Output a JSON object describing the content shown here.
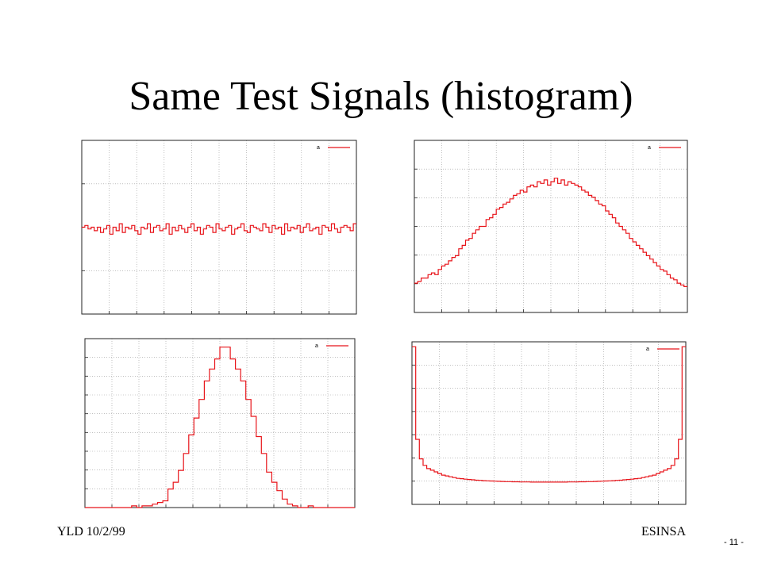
{
  "slide": {
    "title": "Same Test Signals (histogram)",
    "footer_left": "YLD 10/2/99",
    "footer_right": "ESINSA",
    "page_number": "- 11 -"
  },
  "colors": {
    "series": "#e8141a",
    "grid": "#9a9a9a",
    "frame": "#222222"
  },
  "chart_data": [
    {
      "type": "line",
      "step": true,
      "ylim": [
        0,
        1
      ],
      "series": [
        {
          "legend_label": "a",
          "values": [
            0.5,
            0.51,
            0.49,
            0.5,
            0.48,
            0.5,
            0.47,
            0.49,
            0.51,
            0.46,
            0.5,
            0.48,
            0.52,
            0.47,
            0.5,
            0.49,
            0.51,
            0.48,
            0.46,
            0.5,
            0.49,
            0.52,
            0.47,
            0.5,
            0.51,
            0.48,
            0.49,
            0.52,
            0.46,
            0.5,
            0.48,
            0.51,
            0.49,
            0.47,
            0.5,
            0.52,
            0.48,
            0.5,
            0.46,
            0.49,
            0.51,
            0.5,
            0.47,
            0.52,
            0.49,
            0.48,
            0.5,
            0.51,
            0.46,
            0.49,
            0.5,
            0.52,
            0.48,
            0.47,
            0.51,
            0.5,
            0.49,
            0.48,
            0.52,
            0.5,
            0.47,
            0.51,
            0.49,
            0.5,
            0.46,
            0.52,
            0.48,
            0.5,
            0.49,
            0.51,
            0.47,
            0.5,
            0.52,
            0.48,
            0.49,
            0.5,
            0.46,
            0.51,
            0.5,
            0.48,
            0.52,
            0.49,
            0.47,
            0.5,
            0.51,
            0.5,
            0.48,
            0.52
          ]
        }
      ]
    },
    {
      "type": "line",
      "step": true,
      "ylim": [
        0,
        1
      ],
      "series": [
        {
          "legend_label": "a",
          "values": [
            0.17,
            0.18,
            0.2,
            0.2,
            0.22,
            0.23,
            0.22,
            0.25,
            0.27,
            0.28,
            0.3,
            0.32,
            0.33,
            0.37,
            0.39,
            0.42,
            0.43,
            0.46,
            0.48,
            0.5,
            0.5,
            0.54,
            0.55,
            0.57,
            0.6,
            0.61,
            0.63,
            0.64,
            0.66,
            0.68,
            0.69,
            0.71,
            0.7,
            0.73,
            0.74,
            0.73,
            0.76,
            0.75,
            0.77,
            0.74,
            0.76,
            0.78,
            0.75,
            0.77,
            0.74,
            0.76,
            0.75,
            0.74,
            0.73,
            0.71,
            0.7,
            0.68,
            0.67,
            0.65,
            0.63,
            0.62,
            0.59,
            0.57,
            0.55,
            0.52,
            0.5,
            0.48,
            0.46,
            0.43,
            0.41,
            0.39,
            0.37,
            0.35,
            0.33,
            0.31,
            0.29,
            0.27,
            0.25,
            0.24,
            0.22,
            0.2,
            0.19,
            0.17,
            0.16,
            0.15
          ]
        }
      ]
    },
    {
      "type": "line",
      "step": true,
      "ylim": [
        0,
        1
      ],
      "series": [
        {
          "legend_label": "a",
          "values": [
            0,
            0,
            0,
            0,
            0,
            0,
            0,
            0,
            0,
            0.01,
            0,
            0.01,
            0.01,
            0.02,
            0.03,
            0.04,
            0.11,
            0.15,
            0.22,
            0.32,
            0.43,
            0.53,
            0.64,
            0.75,
            0.82,
            0.88,
            0.95,
            0.95,
            0.88,
            0.82,
            0.75,
            0.64,
            0.54,
            0.42,
            0.32,
            0.21,
            0.15,
            0.1,
            0.05,
            0.02,
            0.01,
            0,
            0,
            0.01,
            0,
            0,
            0,
            0,
            0,
            0,
            0,
            0
          ]
        }
      ]
    },
    {
      "type": "line",
      "step": true,
      "ylim": [
        0,
        1
      ],
      "series": [
        {
          "legend_label": "a",
          "values": [
            0.97,
            0.4,
            0.28,
            0.24,
            0.22,
            0.21,
            0.2,
            0.19,
            0.18,
            0.175,
            0.17,
            0.165,
            0.16,
            0.158,
            0.155,
            0.153,
            0.151,
            0.149,
            0.148,
            0.146,
            0.145,
            0.144,
            0.143,
            0.142,
            0.141,
            0.14,
            0.14,
            0.139,
            0.139,
            0.138,
            0.138,
            0.138,
            0.137,
            0.137,
            0.137,
            0.137,
            0.137,
            0.137,
            0.137,
            0.137,
            0.137,
            0.137,
            0.138,
            0.138,
            0.138,
            0.139,
            0.139,
            0.14,
            0.14,
            0.141,
            0.142,
            0.143,
            0.144,
            0.145,
            0.146,
            0.148,
            0.149,
            0.151,
            0.153,
            0.155,
            0.158,
            0.16,
            0.165,
            0.17,
            0.175,
            0.18,
            0.19,
            0.2,
            0.21,
            0.22,
            0.24,
            0.28,
            0.4,
            0.97
          ]
        }
      ]
    }
  ]
}
